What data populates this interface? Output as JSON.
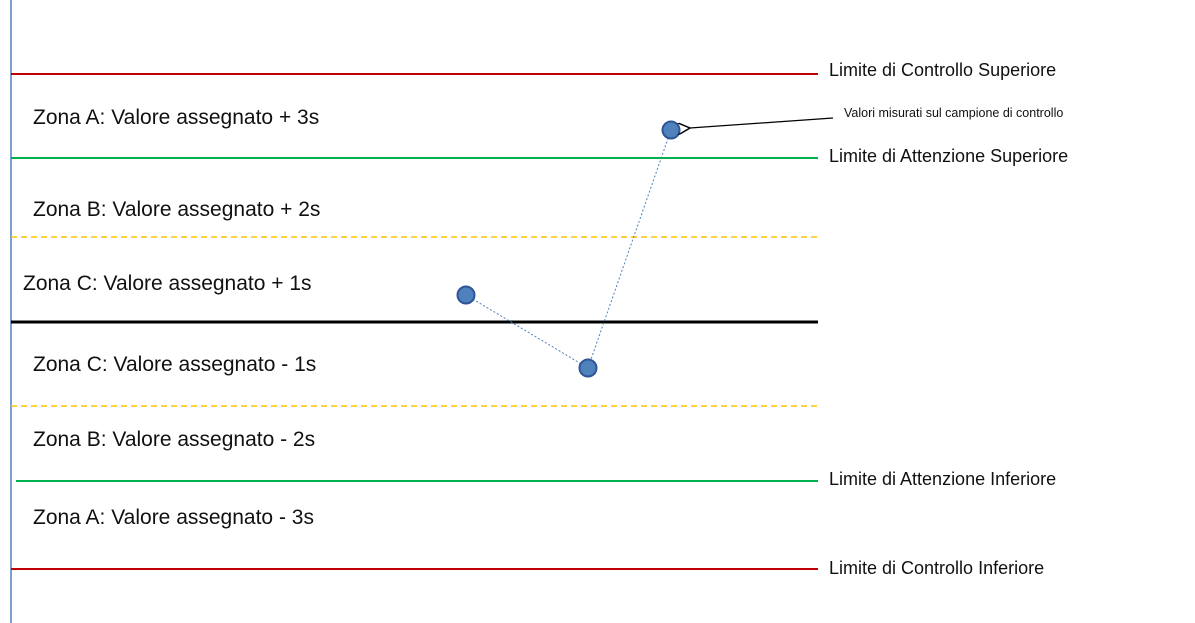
{
  "zones": [
    {
      "label": "Zona A: Valore assegnato + 3s"
    },
    {
      "label": "Zona B: Valore assegnato + 2s"
    },
    {
      "label": "Zona C: Valore assegnato + 1s"
    },
    {
      "label": "Zona C: Valore assegnato - 1s"
    },
    {
      "label": "Zona B: Valore assegnato - 2s"
    },
    {
      "label": "Zona A: Valore assegnato - 3s"
    }
  ],
  "limits": {
    "ucl": {
      "label": "Limite di Controllo Superiore",
      "color": "#c00000"
    },
    "uwl": {
      "label": "Limite di Attenzione  Superiore",
      "color": "#00b050"
    },
    "lwl": {
      "label": "Limite di Attenzione  Inferiore",
      "color": "#00b050"
    },
    "lcl": {
      "label": "Limite di Controllo Inferiore",
      "color": "#c00000"
    }
  },
  "zone_boundary_color": "#ffc000",
  "centre_line_color": "#000000",
  "axis_color": "#4f81bd",
  "point_color": "#4f81bd",
  "annotation": "Valori misurati sul campione di controllo"
}
